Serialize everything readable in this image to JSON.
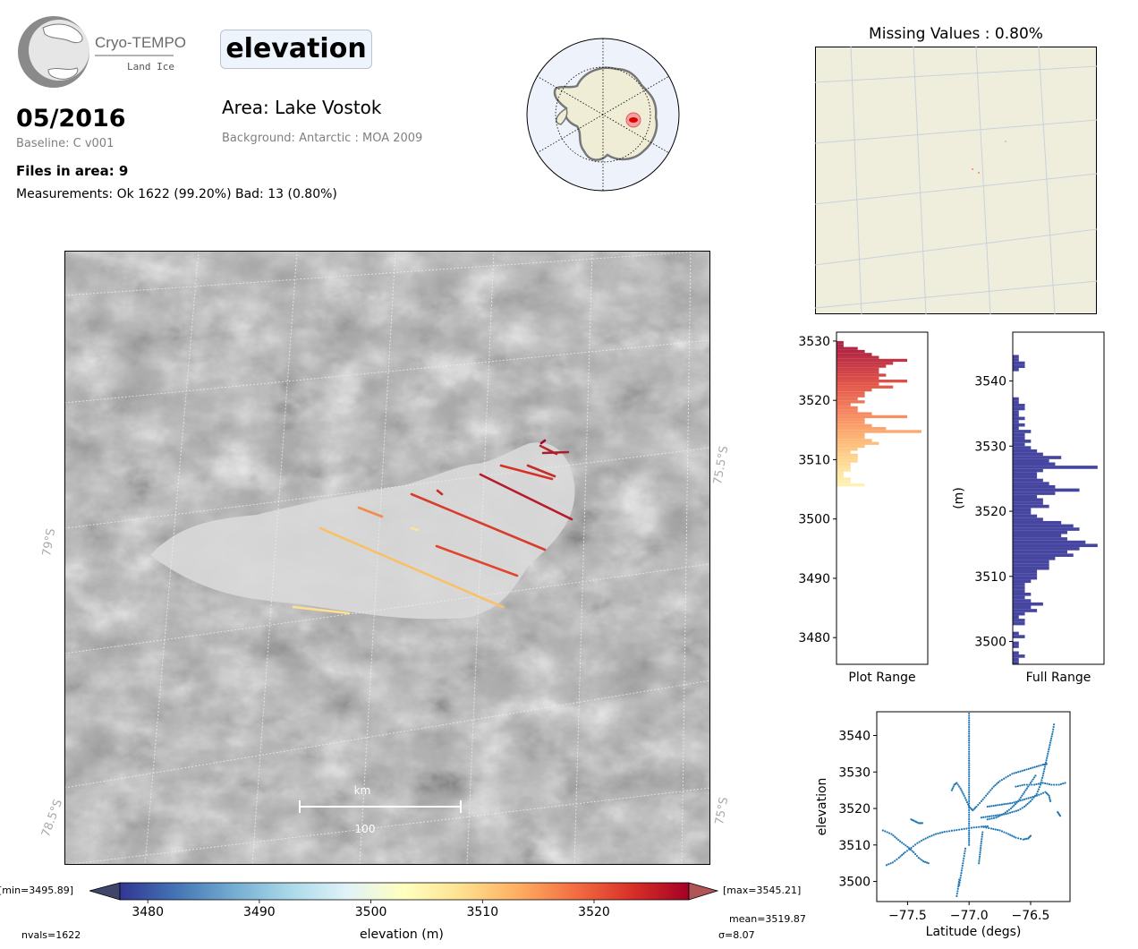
{
  "header": {
    "logo_name": "Cryo-TEMPO",
    "logo_sub": "Land Ice",
    "date": "05/2016",
    "baseline": "Baseline: C v001",
    "files_in_area": "Files in area: 9",
    "measurements": "Measurements: Ok 1622 (99.20%) Bad: 13 (0.80%)",
    "variable": "elevation",
    "area": "Area: Lake Vostok",
    "background": "Background: Antarctic : MOA 2009"
  },
  "missing_title": "Missing Values : 0.80%",
  "map": {
    "lat_labels": [
      "79°S",
      "78.5°S",
      "75.5°S",
      "75°S"
    ],
    "scale_unit": "km",
    "scale_value": "100"
  },
  "colorbar": {
    "min_label": "[min=3495.89]",
    "max_label": "[max=3545.21]",
    "ticks": [
      "3480",
      "3490",
      "3500",
      "3510",
      "3520"
    ],
    "label": "elevation (m)",
    "range": [
      3477.5,
      3528.5
    ],
    "stops": [
      "#313695",
      "#4575b4",
      "#74add1",
      "#abd9e9",
      "#e0f3f8",
      "#ffffbf",
      "#fee090",
      "#fdae61",
      "#f46d43",
      "#d73027",
      "#a50026"
    ]
  },
  "stats": {
    "nvals": "nvals=1622",
    "mean": "mean=3519.87",
    "sigma": "σ=8.07"
  },
  "chart_data": [
    {
      "type": "bar",
      "orientation": "horizontal",
      "xlabel": "Plot Range",
      "ylabel": "",
      "ylim": [
        3475.5,
        3531.5
      ],
      "yticks": [
        "3480",
        "3490",
        "3500",
        "3510",
        "3520",
        "3530"
      ],
      "bins": [
        [
          3505.5,
          4
        ],
        [
          3506.0,
          2
        ],
        [
          3506.5,
          2
        ],
        [
          3507.0,
          1
        ],
        [
          3507.5,
          1
        ],
        [
          3508.0,
          2
        ],
        [
          3508.5,
          2
        ],
        [
          3509.0,
          2
        ],
        [
          3509.5,
          3
        ],
        [
          3510.0,
          3
        ],
        [
          3510.5,
          3
        ],
        [
          3511.0,
          2
        ],
        [
          3511.5,
          3
        ],
        [
          3512.0,
          4
        ],
        [
          3512.5,
          6
        ],
        [
          3513.0,
          5
        ],
        [
          3513.5,
          4
        ],
        [
          3514.0,
          4
        ],
        [
          3514.5,
          12
        ],
        [
          3515.0,
          7
        ],
        [
          3515.5,
          5
        ],
        [
          3516.0,
          4
        ],
        [
          3516.5,
          4
        ],
        [
          3517.0,
          10
        ],
        [
          3517.5,
          5
        ],
        [
          3518.0,
          3
        ],
        [
          3518.5,
          3
        ],
        [
          3519.0,
          2
        ],
        [
          3519.5,
          4
        ],
        [
          3520.0,
          3
        ],
        [
          3520.5,
          4
        ],
        [
          3521.0,
          4
        ],
        [
          3521.5,
          5
        ],
        [
          3522.0,
          8
        ],
        [
          3522.5,
          6
        ],
        [
          3523.0,
          10
        ],
        [
          3523.5,
          6
        ],
        [
          3524.0,
          7
        ],
        [
          3524.5,
          6
        ],
        [
          3525.0,
          6
        ],
        [
          3525.5,
          7
        ],
        [
          3526.0,
          8
        ],
        [
          3526.5,
          10
        ],
        [
          3527.0,
          6
        ],
        [
          3527.5,
          5
        ],
        [
          3528.0,
          4
        ],
        [
          3528.5,
          3
        ],
        [
          3529.0,
          1
        ],
        [
          3529.5,
          1
        ]
      ]
    },
    {
      "type": "bar",
      "orientation": "horizontal",
      "xlabel": "Full Range",
      "ylabel": "(m)",
      "ylim": [
        3496.5,
        3547.5
      ],
      "yticks": [
        "3500",
        "3510",
        "3520",
        "3530",
        "3540"
      ],
      "bins": [
        [
          3496.5,
          1
        ],
        [
          3497.0,
          1
        ],
        [
          3497.5,
          2
        ],
        [
          3498.0,
          1
        ],
        [
          3499.0,
          1
        ],
        [
          3499.5,
          1
        ],
        [
          3500.5,
          2
        ],
        [
          3501.0,
          1
        ],
        [
          3502.5,
          2
        ],
        [
          3503.0,
          2
        ],
        [
          3503.5,
          1
        ],
        [
          3504.0,
          2
        ],
        [
          3504.5,
          4
        ],
        [
          3505.0,
          3
        ],
        [
          3505.5,
          5
        ],
        [
          3506.0,
          3
        ],
        [
          3506.5,
          2
        ],
        [
          3507.0,
          3
        ],
        [
          3507.5,
          2
        ],
        [
          3508.0,
          2
        ],
        [
          3508.5,
          2
        ],
        [
          3509.0,
          3
        ],
        [
          3509.5,
          4
        ],
        [
          3510.0,
          4
        ],
        [
          3510.5,
          4
        ],
        [
          3511.0,
          6
        ],
        [
          3511.5,
          6
        ],
        [
          3512.0,
          6
        ],
        [
          3512.5,
          7
        ],
        [
          3513.0,
          10
        ],
        [
          3513.5,
          9
        ],
        [
          3514.0,
          11
        ],
        [
          3514.5,
          14
        ],
        [
          3515.0,
          12
        ],
        [
          3515.5,
          9
        ],
        [
          3516.0,
          8
        ],
        [
          3516.5,
          9
        ],
        [
          3517.0,
          11
        ],
        [
          3517.5,
          10
        ],
        [
          3518.0,
          8
        ],
        [
          3518.5,
          5
        ],
        [
          3519.0,
          4
        ],
        [
          3519.5,
          3
        ],
        [
          3520.0,
          3
        ],
        [
          3520.5,
          6
        ],
        [
          3521.0,
          5
        ],
        [
          3521.5,
          5
        ],
        [
          3522.0,
          4
        ],
        [
          3522.5,
          7
        ],
        [
          3523.0,
          11
        ],
        [
          3523.5,
          7
        ],
        [
          3524.0,
          6
        ],
        [
          3524.5,
          5
        ],
        [
          3525.0,
          4
        ],
        [
          3525.5,
          4
        ],
        [
          3526.0,
          5
        ],
        [
          3526.5,
          14
        ],
        [
          3527.0,
          7
        ],
        [
          3527.5,
          6
        ],
        [
          3528.0,
          8
        ],
        [
          3528.5,
          5
        ],
        [
          3529.0,
          4
        ],
        [
          3529.5,
          3
        ],
        [
          3530.0,
          2
        ],
        [
          3530.5,
          3
        ],
        [
          3531.0,
          2
        ],
        [
          3531.5,
          2
        ],
        [
          3532.0,
          3
        ],
        [
          3532.5,
          1
        ],
        [
          3533.0,
          2
        ],
        [
          3533.5,
          1
        ],
        [
          3534.0,
          2
        ],
        [
          3534.5,
          1
        ],
        [
          3535.0,
          1
        ],
        [
          3535.5,
          2
        ],
        [
          3536.0,
          2
        ],
        [
          3536.5,
          1
        ],
        [
          3537.0,
          1
        ],
        [
          3541.5,
          1
        ],
        [
          3542.0,
          2
        ],
        [
          3542.5,
          2
        ],
        [
          3543.0,
          1
        ],
        [
          3543.5,
          1
        ]
      ]
    },
    {
      "type": "scatter",
      "xlabel": "Latitude (degs)",
      "ylabel": "elevation",
      "xlim": [
        -77.75,
        -76.18
      ],
      "ylim": [
        3494.5,
        3546.5
      ],
      "xticks": [
        "−77.5",
        "−77.0",
        "−76.5"
      ],
      "yticks": [
        "3500",
        "3510",
        "3520",
        "3530",
        "3540"
      ],
      "series": [
        {
          "points": [
            [
              -77.67,
              3504.5
            ],
            [
              -77.62,
              3505.2
            ],
            [
              -77.57,
              3506.5
            ],
            [
              -77.52,
              3508.0
            ],
            [
              -77.47,
              3509.2
            ],
            [
              -77.42,
              3510.5
            ],
            [
              -77.37,
              3511.5
            ],
            [
              -77.32,
              3512.3
            ],
            [
              -77.27,
              3513.0
            ],
            [
              -77.2,
              3513.6
            ],
            [
              -77.12,
              3514.0
            ],
            [
              -77.04,
              3514.4
            ],
            [
              -76.96,
              3514.8
            ],
            [
              -76.9,
              3515.0
            ],
            [
              -76.85,
              3515.1
            ]
          ]
        },
        {
          "points": [
            [
              -77.7,
              3514.0
            ],
            [
              -77.63,
              3513.0
            ],
            [
              -77.56,
              3511.0
            ],
            [
              -77.5,
              3509.5
            ],
            [
              -77.45,
              3508.0
            ],
            [
              -77.41,
              3506.5
            ],
            [
              -77.37,
              3505.5
            ],
            [
              -77.33,
              3505.0
            ]
          ]
        },
        {
          "points": [
            [
              -77.47,
              3517.0
            ],
            [
              -77.44,
              3516.5
            ],
            [
              -77.41,
              3516.0
            ],
            [
              -77.38,
              3516.0
            ]
          ]
        },
        {
          "points": [
            [
              -77.14,
              3525.0
            ],
            [
              -77.12,
              3526.5
            ],
            [
              -77.1,
              3527.0
            ],
            [
              -77.07,
              3525.5
            ],
            [
              -77.04,
              3523.5
            ],
            [
              -77.0,
              3520.5
            ],
            [
              -76.97,
              3519.5
            ],
            [
              -76.94,
              3520.5
            ],
            [
              -76.9,
              3522.0
            ],
            [
              -76.85,
              3524.0
            ],
            [
              -76.8,
              3526.0
            ],
            [
              -76.75,
              3527.5
            ],
            [
              -76.7,
              3528.5
            ],
            [
              -76.65,
              3529.5
            ],
            [
              -76.6,
              3530.0
            ],
            [
              -76.55,
              3530.5
            ],
            [
              -76.5,
              3531.0
            ],
            [
              -76.45,
              3531.5
            ],
            [
              -76.4,
              3532.0
            ],
            [
              -76.37,
              3532.2
            ]
          ]
        },
        {
          "points": [
            [
              -76.9,
              3517.5
            ],
            [
              -76.8,
              3518.0
            ],
            [
              -76.7,
              3518.5
            ],
            [
              -76.6,
              3519.5
            ],
            [
              -76.55,
              3520.5
            ],
            [
              -76.5,
              3522.0
            ],
            [
              -76.45,
              3524.0
            ],
            [
              -76.42,
              3526.5
            ],
            [
              -76.4,
              3529.0
            ],
            [
              -76.38,
              3532.0
            ],
            [
              -76.36,
              3535.0
            ],
            [
              -76.34,
              3538.0
            ],
            [
              -76.32,
              3541.0
            ],
            [
              -76.31,
              3543.0
            ]
          ]
        },
        {
          "points": [
            [
              -76.85,
              3520.5
            ],
            [
              -76.75,
              3521.0
            ],
            [
              -76.65,
              3521.5
            ],
            [
              -76.55,
              3522.5
            ],
            [
              -76.45,
              3523.5
            ],
            [
              -76.38,
              3524.5
            ],
            [
              -76.35,
              3523.5
            ],
            [
              -76.34,
              3522.0
            ]
          ]
        },
        {
          "points": [
            [
              -76.62,
              3526.0
            ],
            [
              -76.55,
              3526.5
            ],
            [
              -76.47,
              3526.5
            ],
            [
              -76.4,
              3527.0
            ],
            [
              -76.33,
              3526.5
            ],
            [
              -76.27,
              3526.5
            ],
            [
              -76.22,
              3527.0
            ]
          ]
        },
        {
          "points": [
            [
              -76.9,
              3515.0
            ],
            [
              -76.82,
              3514.5
            ],
            [
              -76.75,
              3514.0
            ],
            [
              -76.68,
              3513.0
            ],
            [
              -76.62,
              3512.0
            ],
            [
              -76.56,
              3511.5
            ],
            [
              -76.52,
              3511.8
            ],
            [
              -76.5,
              3512.5
            ]
          ]
        },
        {
          "points": [
            [
              -76.85,
              3517.0
            ],
            [
              -76.78,
              3517.5
            ],
            [
              -76.72,
              3518.5
            ],
            [
              -76.66,
              3520.0
            ],
            [
              -76.6,
              3522.0
            ],
            [
              -76.55,
              3524.5
            ],
            [
              -76.5,
              3527.0
            ],
            [
              -76.46,
              3529.0
            ]
          ]
        },
        {
          "points": [
            [
              -77.0,
              3546.0
            ],
            [
              -77.0,
              3538.0
            ],
            [
              -77.0,
              3530.0
            ],
            [
              -77.0,
              3522.0
            ],
            [
              -77.0,
              3514.0
            ],
            [
              -77.0,
              3510.0
            ]
          ]
        },
        {
          "points": [
            [
              -77.08,
              3499.0
            ],
            [
              -77.07,
              3501.0
            ],
            [
              -77.06,
              3503.0
            ],
            [
              -77.05,
              3505.0
            ],
            [
              -77.04,
              3507.0
            ],
            [
              -77.03,
              3509.0
            ]
          ]
        },
        {
          "points": [
            [
              -77.1,
              3496.0
            ],
            [
              -77.09,
              3498.0
            ],
            [
              -77.08,
              3500.5
            ]
          ]
        },
        {
          "points": [
            [
              -76.92,
              3505.0
            ],
            [
              -76.91,
              3508.0
            ],
            [
              -76.9,
              3511.0
            ],
            [
              -76.89,
              3513.5
            ]
          ]
        },
        {
          "points": [
            [
              -76.28,
              3519.0
            ],
            [
              -76.26,
              3518.0
            ]
          ]
        }
      ]
    }
  ]
}
